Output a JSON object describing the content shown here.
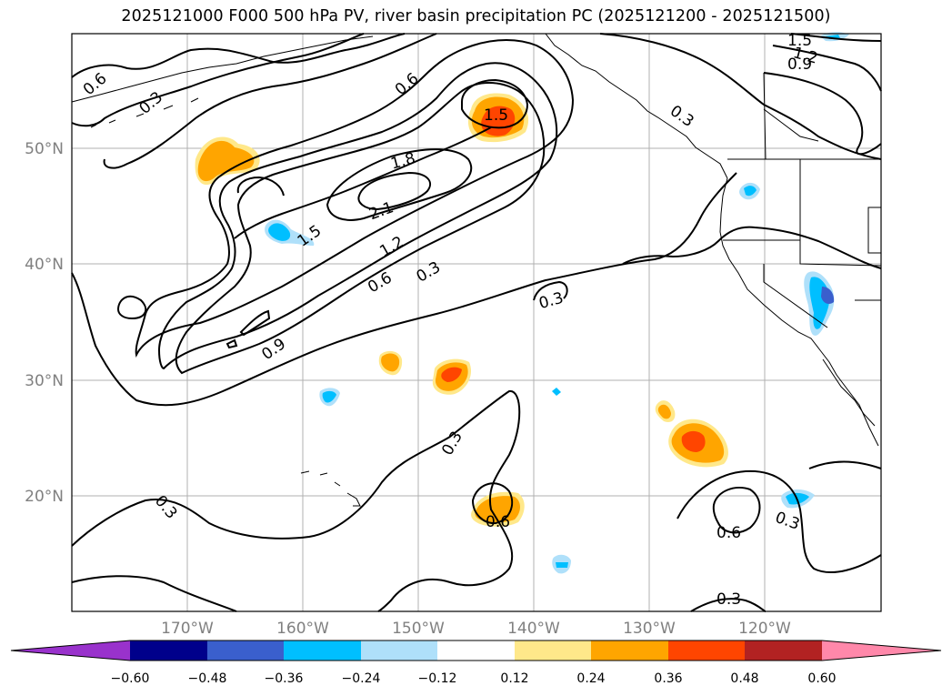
{
  "title": "2025121000 F000 500 hPa PV, river basin precipitation PC (2025121200 - 2025121500)",
  "axes": {
    "lat_labels": [
      "50°N",
      "40°N",
      "30°N",
      "20°N"
    ],
    "lon_labels": [
      "170°W",
      "160°W",
      "150°W",
      "140°W",
      "130°W",
      "120°W"
    ]
  },
  "contour_labels": [
    "0.6",
    "0.3",
    "0.6",
    "1.5",
    "1.8",
    "2.1",
    "1.5",
    "1.2",
    "0.6",
    "0.3",
    "0.9",
    "0.3",
    "0.3",
    "0.3",
    "0.6",
    "0.6",
    "0.3",
    "0.3",
    "1.5",
    "1.2",
    "0.9",
    "0.3"
  ],
  "colorbar": {
    "ticks": [
      "−0.60",
      "−0.48",
      "−0.36",
      "−0.24",
      "−0.12",
      "0.12",
      "0.24",
      "0.36",
      "0.48",
      "0.60"
    ],
    "colors": [
      "#9932cc",
      "#00008b",
      "#3a5fcd",
      "#00bfff",
      "#afe0fa",
      "#ffffff",
      "#ffe88a",
      "#ffa500",
      "#ff4500",
      "#b22222",
      "#ff88aa"
    ]
  },
  "chart_data": {
    "type": "map",
    "variable": "500 hPa PV contours with precipitation PC shading",
    "lat_range": [
      "10°N",
      "60°N"
    ],
    "lon_range": [
      "180°W",
      "110°W"
    ],
    "contour_levels": [
      0.3,
      0.6,
      0.9,
      1.2,
      1.5,
      1.8,
      2.1
    ],
    "shading_bounds": [
      -0.6,
      -0.48,
      -0.36,
      -0.24,
      -0.12,
      0.12,
      0.24,
      0.36,
      0.48,
      0.6
    ]
  }
}
